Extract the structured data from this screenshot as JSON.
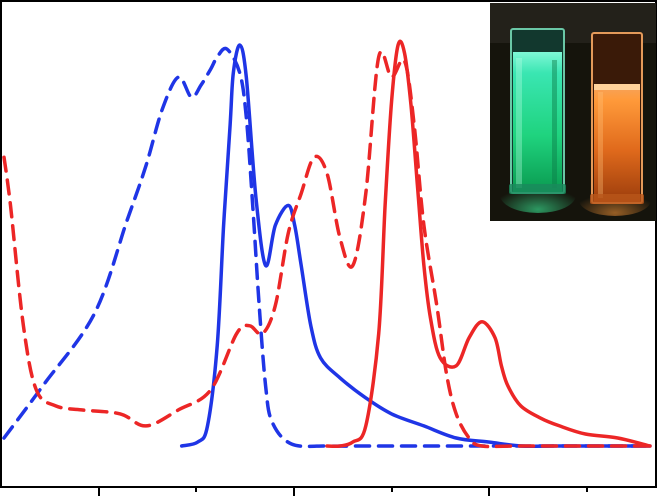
{
  "chart_data": {
    "type": "line",
    "title": "",
    "xlabel": "",
    "ylabel": "",
    "x_ticks": [
      "",
      "",
      "",
      "",
      "",
      ""
    ],
    "x_range": [
      0,
      1
    ],
    "y_range": [
      0,
      1
    ],
    "grid": false,
    "legend": "none",
    "series": [
      {
        "color": "#1f35e6",
        "dash": true,
        "x": [
          0.0,
          0.06,
          0.14,
          0.19,
          0.22,
          0.245,
          0.27,
          0.29,
          0.305,
          0.32,
          0.33,
          0.345,
          0.365,
          0.375,
          0.385,
          0.395,
          0.405,
          0.415,
          0.445,
          0.5,
          0.55,
          0.6,
          0.65,
          0.7,
          0.8,
          0.9,
          1.0
        ],
        "y": [
          0.02,
          0.15,
          0.33,
          0.56,
          0.7,
          0.84,
          0.92,
          0.87,
          0.9,
          0.94,
          0.97,
          0.99,
          0.93,
          0.82,
          0.6,
          0.35,
          0.15,
          0.06,
          0.005,
          0.0,
          0.0,
          0.0,
          0.0,
          0.0,
          0.0,
          0.0,
          0.0
        ]
      },
      {
        "color": "#1f35e6",
        "dash": false,
        "x": [
          0.275,
          0.3,
          0.315,
          0.33,
          0.34,
          0.35,
          0.355,
          0.365,
          0.375,
          0.39,
          0.405,
          0.42,
          0.44,
          0.45,
          0.46,
          0.475,
          0.49,
          0.52,
          0.56,
          0.6,
          0.65,
          0.7,
          0.75,
          0.8,
          0.85,
          0.9,
          0.95,
          1.0
        ],
        "y": [
          0.0,
          0.01,
          0.05,
          0.25,
          0.55,
          0.8,
          0.93,
          1.0,
          0.92,
          0.62,
          0.45,
          0.55,
          0.6,
          0.55,
          0.45,
          0.3,
          0.22,
          0.17,
          0.12,
          0.08,
          0.05,
          0.02,
          0.01,
          0.0,
          0.0,
          0.0,
          0.0,
          0.0
        ]
      },
      {
        "color": "#ec2626",
        "dash": true,
        "x": [
          0.0,
          0.01,
          0.03,
          0.05,
          0.08,
          0.12,
          0.18,
          0.22,
          0.27,
          0.32,
          0.36,
          0.38,
          0.4,
          0.42,
          0.44,
          0.46,
          0.48,
          0.5,
          0.52,
          0.54,
          0.56,
          0.58,
          0.6,
          0.62,
          0.635,
          0.65,
          0.67,
          0.685,
          0.7,
          0.72,
          0.74,
          0.8,
          1.0
        ],
        "y": [
          0.72,
          0.6,
          0.3,
          0.14,
          0.1,
          0.09,
          0.08,
          0.05,
          0.09,
          0.14,
          0.28,
          0.3,
          0.28,
          0.35,
          0.53,
          0.63,
          0.72,
          0.68,
          0.52,
          0.45,
          0.63,
          0.97,
          0.92,
          0.96,
          0.8,
          0.55,
          0.35,
          0.18,
          0.08,
          0.02,
          0.0,
          0.0,
          0.0
        ]
      },
      {
        "color": "#ec2626",
        "dash": false,
        "x": [
          0.5,
          0.52,
          0.54,
          0.56,
          0.58,
          0.59,
          0.6,
          0.61,
          0.62,
          0.63,
          0.64,
          0.65,
          0.66,
          0.675,
          0.7,
          0.72,
          0.74,
          0.76,
          0.77,
          0.78,
          0.8,
          0.83,
          0.86,
          0.9,
          0.95,
          1.0
        ],
        "y": [
          0.0,
          0.0,
          0.01,
          0.05,
          0.28,
          0.6,
          0.86,
          1.0,
          0.98,
          0.85,
          0.65,
          0.45,
          0.32,
          0.22,
          0.2,
          0.27,
          0.31,
          0.27,
          0.2,
          0.15,
          0.1,
          0.07,
          0.05,
          0.03,
          0.02,
          0.0
        ]
      }
    ]
  },
  "inset_photo": {
    "left_cuvette_color": "#2fe6a0",
    "right_cuvette_color": "#f07a2a",
    "background_color": "#15140c"
  }
}
